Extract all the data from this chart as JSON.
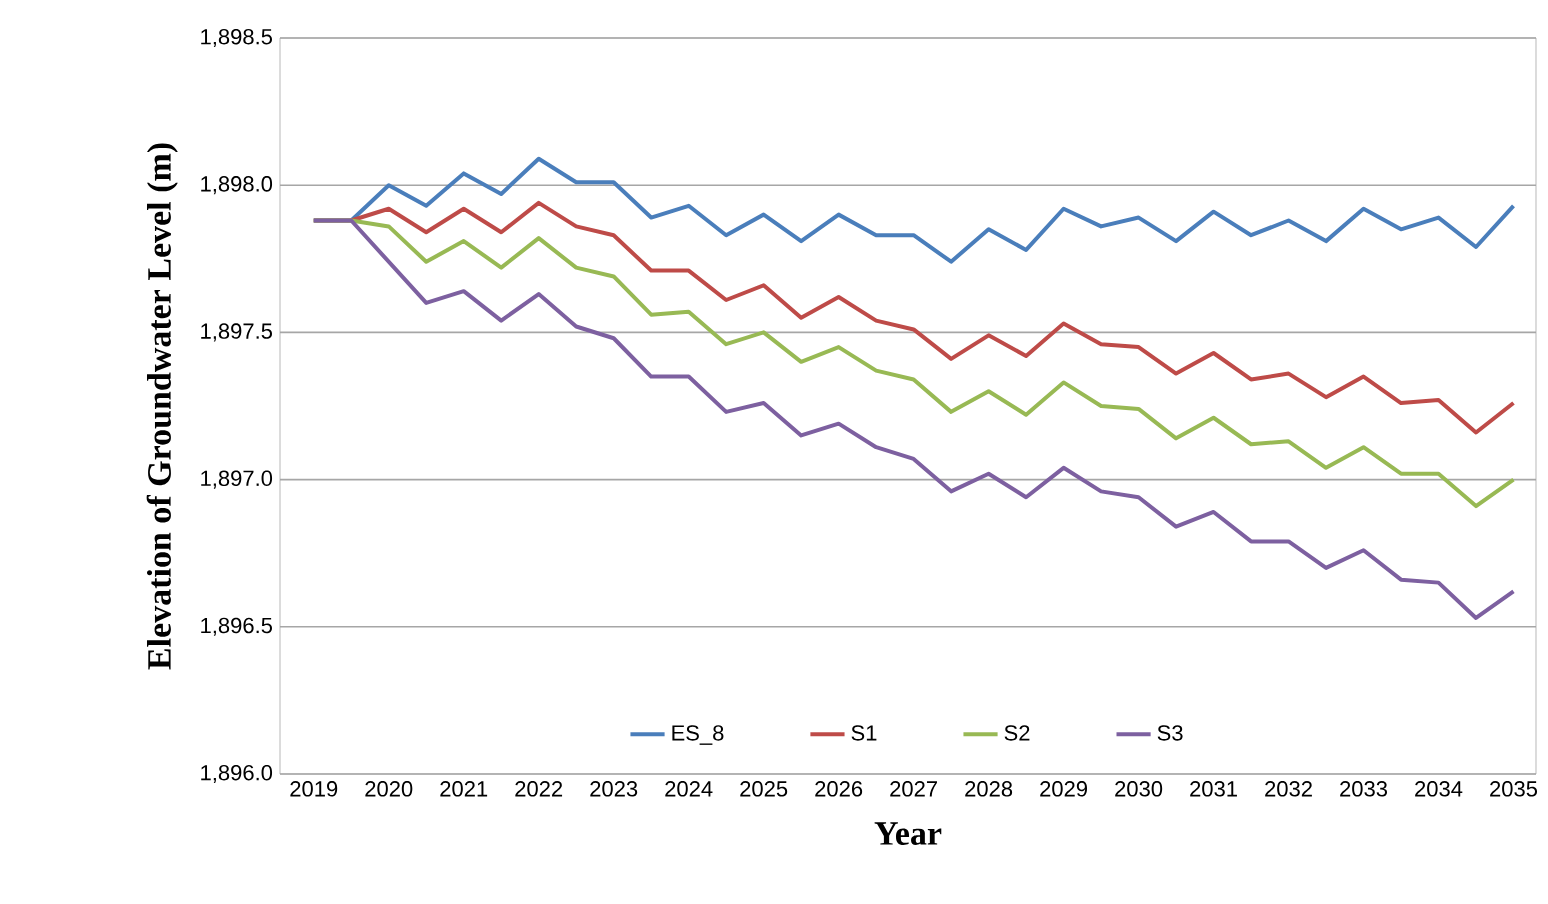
{
  "chart_data": {
    "type": "line",
    "xlabel": "Year",
    "ylabel": "Elevation of Groundwater Level (m)",
    "x": [
      2019,
      2019.5,
      2020,
      2020.5,
      2021,
      2021.5,
      2022,
      2022.5,
      2023,
      2023.5,
      2024,
      2024.5,
      2025,
      2025.5,
      2026,
      2026.5,
      2027,
      2027.5,
      2028,
      2028.5,
      2029,
      2029.5,
      2030,
      2030.5,
      2031,
      2031.5,
      2032,
      2032.5,
      2033,
      2033.5,
      2034,
      2034.5,
      2035
    ],
    "series": [
      {
        "name": "ES_8",
        "color": "#4a7ebb",
        "values": [
          1897.88,
          1897.88,
          1898.0,
          1897.93,
          1898.04,
          1897.97,
          1898.09,
          1898.01,
          1898.01,
          1897.89,
          1897.93,
          1897.83,
          1897.9,
          1897.81,
          1897.9,
          1897.83,
          1897.83,
          1897.74,
          1897.85,
          1897.78,
          1897.92,
          1897.86,
          1897.89,
          1897.81,
          1897.91,
          1897.83,
          1897.88,
          1897.81,
          1897.92,
          1897.85,
          1897.89,
          1897.79,
          1897.93
        ]
      },
      {
        "name": "S1",
        "color": "#be4b48",
        "values": [
          1897.88,
          1897.88,
          1897.92,
          1897.84,
          1897.92,
          1897.84,
          1897.94,
          1897.86,
          1897.83,
          1897.71,
          1897.71,
          1897.61,
          1897.66,
          1897.55,
          1897.62,
          1897.54,
          1897.51,
          1897.41,
          1897.49,
          1897.42,
          1897.53,
          1897.46,
          1897.45,
          1897.36,
          1897.43,
          1897.34,
          1897.36,
          1897.28,
          1897.35,
          1897.26,
          1897.27,
          1897.16,
          1897.26
        ]
      },
      {
        "name": "S2",
        "color": "#98b954",
        "values": [
          1897.88,
          1897.88,
          1897.86,
          1897.74,
          1897.81,
          1897.72,
          1897.82,
          1897.72,
          1897.69,
          1897.56,
          1897.57,
          1897.46,
          1897.5,
          1897.4,
          1897.45,
          1897.37,
          1897.34,
          1897.23,
          1897.3,
          1897.22,
          1897.33,
          1897.25,
          1897.24,
          1897.14,
          1897.21,
          1897.12,
          1897.13,
          1897.04,
          1897.11,
          1897.02,
          1897.02,
          1896.91,
          1897.0
        ]
      },
      {
        "name": "S3",
        "color": "#7d60a0",
        "values": [
          1897.88,
          1897.88,
          1897.74,
          1897.6,
          1897.64,
          1897.54,
          1897.63,
          1897.52,
          1897.48,
          1897.35,
          1897.35,
          1897.23,
          1897.26,
          1897.15,
          1897.19,
          1897.11,
          1897.07,
          1896.96,
          1897.02,
          1896.94,
          1897.04,
          1896.96,
          1896.94,
          1896.84,
          1896.89,
          1896.79,
          1896.79,
          1896.7,
          1896.76,
          1896.66,
          1896.65,
          1896.53,
          1896.62
        ]
      }
    ],
    "xlim": [
      2018.55,
      2035.3
    ],
    "xticks": [
      2019,
      2020,
      2021,
      2022,
      2023,
      2024,
      2025,
      2026,
      2027,
      2028,
      2029,
      2030,
      2031,
      2032,
      2033,
      2034,
      2035
    ],
    "ylim": [
      1896.0,
      1898.5
    ],
    "yticks": [
      {
        "value": 1896.0,
        "label": "1,896.0"
      },
      {
        "value": 1896.5,
        "label": "1,896.5"
      },
      {
        "value": 1897.0,
        "label": "1,897.0"
      },
      {
        "value": 1897.5,
        "label": "1,897.5"
      },
      {
        "value": 1898.0,
        "label": "1,898.0"
      },
      {
        "value": 1898.5,
        "label": "1,898.5"
      }
    ],
    "grid": "y",
    "legend": "bottom",
    "marker": "none",
    "line_style": "solid"
  }
}
